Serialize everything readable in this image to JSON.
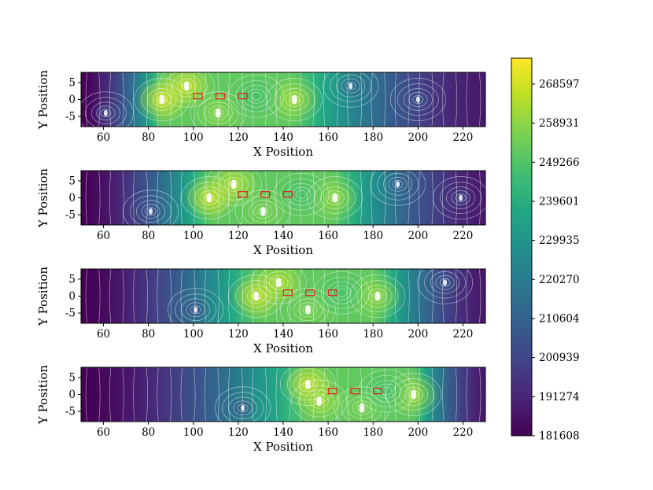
{
  "chart_data": [
    {
      "type": "heatmap",
      "xlabel": "X Position",
      "ylabel": "Y Position",
      "xlim": [
        50,
        230
      ],
      "ylim": [
        -8,
        8
      ],
      "xticks": [
        60,
        80,
        100,
        120,
        140,
        160,
        180,
        200,
        220
      ],
      "yticks": [
        5,
        0,
        -5
      ],
      "hot_centers": [
        {
          "x": 86,
          "y": 0,
          "value": 270000
        },
        {
          "x": 97,
          "y": 4,
          "value": 268000
        },
        {
          "x": 111,
          "y": -4,
          "value": 258000
        },
        {
          "x": 145,
          "y": 0,
          "value": 262000
        },
        {
          "x": 128,
          "y": 1,
          "value": 248000
        }
      ],
      "cool_centers": [
        {
          "x": 61,
          "y": -4,
          "value": 205000
        },
        {
          "x": 170,
          "y": 4,
          "value": 210000
        },
        {
          "x": 200,
          "y": 0,
          "value": 206000
        }
      ],
      "markers": [
        {
          "x": 102,
          "y": 1
        },
        {
          "x": 112,
          "y": 1
        },
        {
          "x": 122,
          "y": 1
        }
      ]
    },
    {
      "type": "heatmap",
      "xlabel": "X Position",
      "ylabel": "Y Position",
      "xlim": [
        50,
        230
      ],
      "ylim": [
        -8,
        8
      ],
      "xticks": [
        60,
        80,
        100,
        120,
        140,
        160,
        180,
        200,
        220
      ],
      "yticks": [
        5,
        0,
        -5
      ],
      "hot_centers": [
        {
          "x": 107,
          "y": 0,
          "value": 268000
        },
        {
          "x": 118,
          "y": 4,
          "value": 264000
        },
        {
          "x": 131,
          "y": -4,
          "value": 256000
        },
        {
          "x": 163,
          "y": 0,
          "value": 260000
        },
        {
          "x": 148,
          "y": 1,
          "value": 248000
        }
      ],
      "cool_centers": [
        {
          "x": 81,
          "y": -4,
          "value": 204000
        },
        {
          "x": 191,
          "y": 4,
          "value": 209000
        },
        {
          "x": 219,
          "y": 0,
          "value": 204000
        }
      ],
      "markers": [
        {
          "x": 122,
          "y": 1
        },
        {
          "x": 132,
          "y": 1
        },
        {
          "x": 142,
          "y": 1
        }
      ]
    },
    {
      "type": "heatmap",
      "xlabel": "X Position",
      "ylabel": "Y Position",
      "xlim": [
        50,
        230
      ],
      "ylim": [
        -8,
        8
      ],
      "xticks": [
        60,
        80,
        100,
        120,
        140,
        160,
        180,
        200,
        220
      ],
      "yticks": [
        5,
        0,
        -5
      ],
      "hot_centers": [
        {
          "x": 128,
          "y": 0,
          "value": 268000
        },
        {
          "x": 138,
          "y": 4,
          "value": 264000
        },
        {
          "x": 151,
          "y": -4,
          "value": 256000
        },
        {
          "x": 182,
          "y": 0,
          "value": 260000
        },
        {
          "x": 166,
          "y": 1,
          "value": 248000
        }
      ],
      "cool_centers": [
        {
          "x": 101,
          "y": -4,
          "value": 204000
        },
        {
          "x": 212,
          "y": 4,
          "value": 208000
        }
      ],
      "markers": [
        {
          "x": 142,
          "y": 1
        },
        {
          "x": 152,
          "y": 1
        },
        {
          "x": 162,
          "y": 1
        }
      ]
    },
    {
      "type": "heatmap",
      "xlabel": "X Position",
      "ylabel": "Y Position",
      "xlim": [
        50,
        230
      ],
      "ylim": [
        -8,
        8
      ],
      "xticks": [
        60,
        80,
        100,
        120,
        140,
        160,
        180,
        200,
        220
      ],
      "yticks": [
        5,
        0,
        -5
      ],
      "hot_centers": [
        {
          "x": 151,
          "y": 3,
          "value": 268000
        },
        {
          "x": 156,
          "y": -2,
          "value": 262000
        },
        {
          "x": 175,
          "y": -4,
          "value": 256000
        },
        {
          "x": 198,
          "y": 0,
          "value": 262000
        },
        {
          "x": 186,
          "y": 1,
          "value": 248000
        }
      ],
      "cool_centers": [
        {
          "x": 122,
          "y": -4,
          "value": 204000
        }
      ],
      "markers": [
        {
          "x": 162,
          "y": 1
        },
        {
          "x": 172,
          "y": 1
        },
        {
          "x": 182,
          "y": 1
        }
      ]
    }
  ],
  "colorbar": {
    "colormap": "viridis",
    "min": 181608,
    "max": 275000,
    "ticks": [
      "268597",
      "258931",
      "249266",
      "239601",
      "229935",
      "220270",
      "210604",
      "200939",
      "191274",
      "181608"
    ],
    "tick_values": [
      268597,
      258931,
      249266,
      239601,
      229935,
      220270,
      210604,
      200939,
      191274,
      181608
    ]
  },
  "colors": {
    "marker": "#e0201b",
    "contour": "#ffffff",
    "frame": "#000000"
  }
}
